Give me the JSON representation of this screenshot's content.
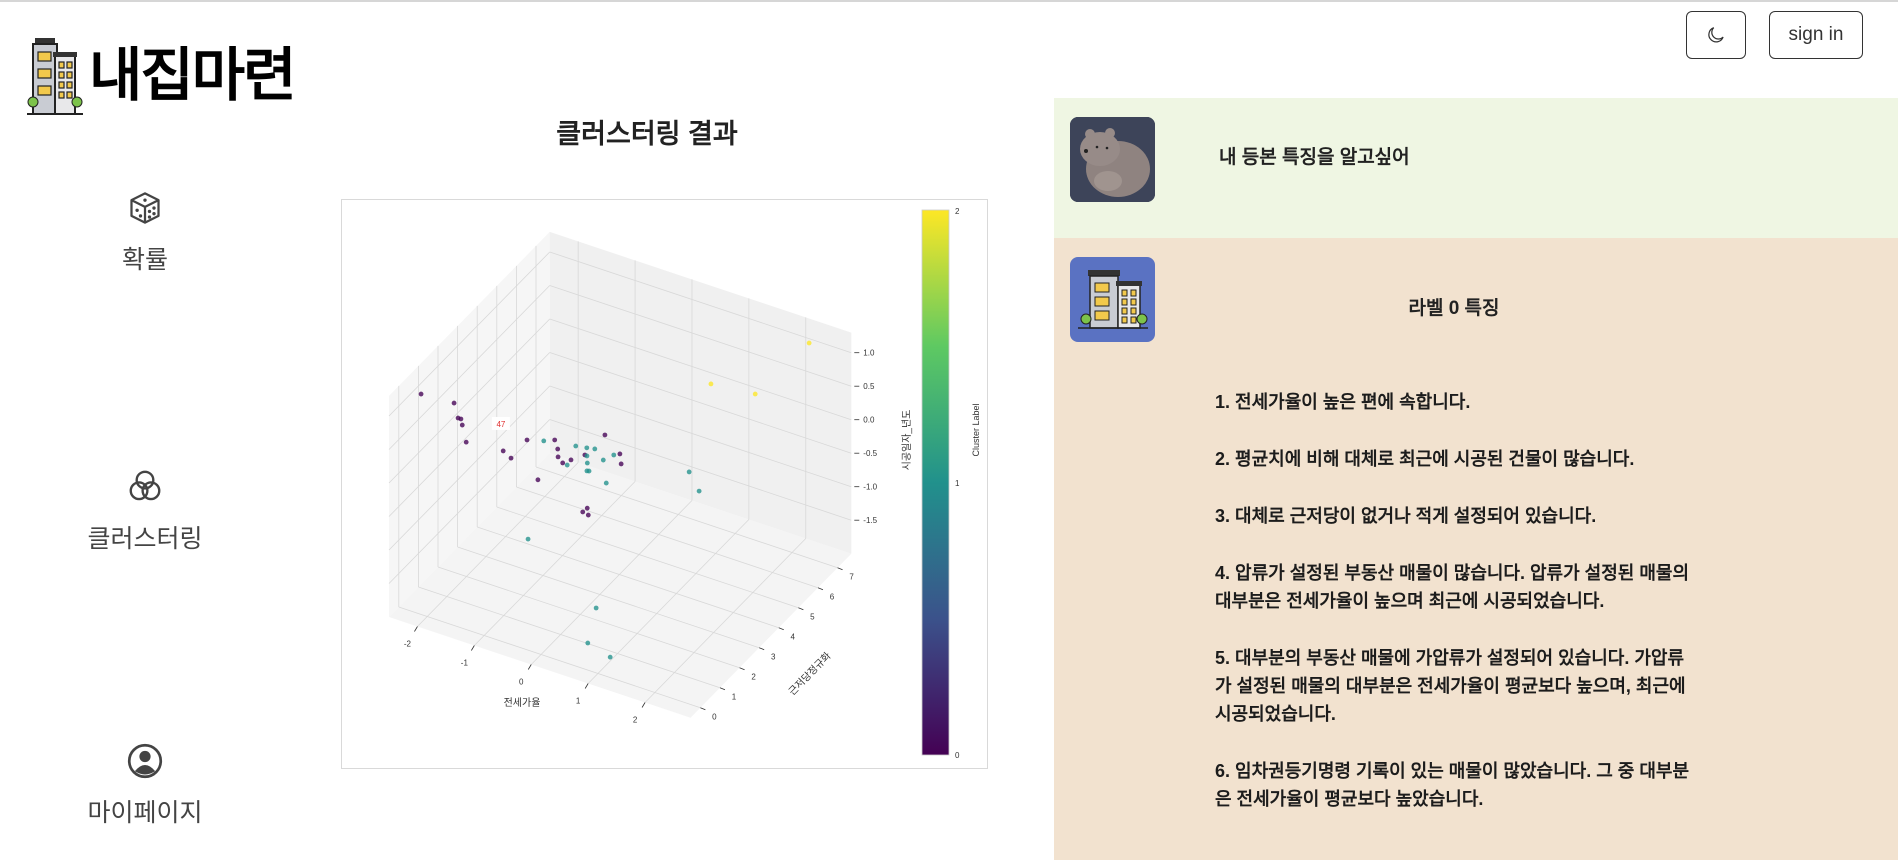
{
  "app": {
    "logo_text": "내집마련"
  },
  "header": {
    "theme_icon": "moon-icon",
    "sign_in_label": "sign in"
  },
  "sidebar": {
    "items": [
      {
        "label": "확률",
        "icon": "dice-icon"
      },
      {
        "label": "클러스터링",
        "icon": "venn-circles-icon"
      },
      {
        "label": "마이페이지",
        "icon": "user-circle-icon"
      }
    ]
  },
  "main": {
    "title": "클러스터링 결과"
  },
  "chart_data": {
    "type": "scatter3d",
    "xlabel": "전세가율",
    "ylabel": "근저당정규화",
    "zlabel": "시공일자_년도",
    "xticks": [
      "-2",
      "-1",
      "0",
      "1",
      "2"
    ],
    "yticks": [
      "0",
      "1",
      "2",
      "3",
      "4",
      "5",
      "6",
      "7"
    ],
    "zticks": [
      "1.0",
      "0.5",
      "0.0",
      "-0.5",
      "-1.0",
      "-1.5"
    ],
    "xlim": [
      -2.5,
      2.8
    ],
    "ylim": [
      -0.5,
      7.7
    ],
    "zlim": [
      -2.0,
      1.3
    ],
    "colorbar": {
      "label": "Cluster Label",
      "ticks": [
        "0",
        "1",
        "2"
      ],
      "colormap": "viridis",
      "range": [
        0,
        2
      ]
    },
    "cluster_colors": [
      "#440154",
      "#21918c",
      "#fde725"
    ],
    "grid": true,
    "annotation": {
      "text": "47",
      "color": "#e03030",
      "x": -1.25,
      "y": 1.58,
      "z": 0.6
    },
    "points": [
      {
        "x": -2.36,
        "y": 0.73,
        "z": 1.0,
        "label": 0
      },
      {
        "x": -1.98,
        "y": 1.31,
        "z": 0.8,
        "label": 0
      },
      {
        "x": -1.82,
        "y": 1.05,
        "z": 0.7,
        "label": 0
      },
      {
        "x": -1.77,
        "y": 1.05,
        "z": 0.7,
        "label": 0
      },
      {
        "x": -1.76,
        "y": 1.09,
        "z": 0.6,
        "label": 0
      },
      {
        "x": -1.66,
        "y": 1.0,
        "z": 0.4,
        "label": 0
      },
      {
        "x": -1.23,
        "y": 1.64,
        "z": 0.2,
        "label": 0
      },
      {
        "x": -1.12,
        "y": 1.72,
        "z": 0.1,
        "label": 0
      },
      {
        "x": -0.97,
        "y": 2.1,
        "z": 0.3,
        "label": 0
      },
      {
        "x": -0.83,
        "y": 2.25,
        "z": -0.3,
        "label": 0
      },
      {
        "x": -0.69,
        "y": 2.7,
        "z": 0.2,
        "label": 0
      },
      {
        "x": -0.62,
        "y": 2.65,
        "z": 0.1,
        "label": 0
      },
      {
        "x": -0.6,
        "y": 2.61,
        "z": 0.0,
        "label": 0
      },
      {
        "x": -0.46,
        "y": 2.44,
        "z": 0.0,
        "label": 0
      },
      {
        "x": -0.39,
        "y": 2.66,
        "z": 0.0,
        "label": 0
      },
      {
        "x": -0.27,
        "y": 3.02,
        "z": 0.0,
        "label": 0
      },
      {
        "x": -0.09,
        "y": 3.52,
        "z": 0.2,
        "label": 0
      },
      {
        "x": 0.18,
        "y": 3.5,
        "z": 0.0,
        "label": 0
      },
      {
        "x": 0.24,
        "y": 3.39,
        "z": -0.1,
        "label": 0
      },
      {
        "x": -0.07,
        "y": 2.56,
        "z": -0.6,
        "label": 0
      },
      {
        "x": -0.08,
        "y": 2.36,
        "z": -0.6,
        "label": 0
      },
      {
        "x": -0.01,
        "y": 2.44,
        "z": -0.65,
        "label": 0
      },
      {
        "x": -0.91,
        "y": 2.78,
        "z": 0.1,
        "label": 1
      },
      {
        "x": -0.42,
        "y": 2.99,
        "z": 0.1,
        "label": 1
      },
      {
        "x": -0.25,
        "y": 3.06,
        "z": 0.1,
        "label": 1
      },
      {
        "x": -0.23,
        "y": 3.01,
        "z": 0.0,
        "label": 1
      },
      {
        "x": -0.13,
        "y": 3.12,
        "z": 0.1,
        "label": 1
      },
      {
        "x": 0.04,
        "y": 3.06,
        "z": 0.0,
        "label": 1
      },
      {
        "x": 0.2,
        "y": 3.13,
        "z": 0.1,
        "label": 1
      },
      {
        "x": -0.46,
        "y": 2.67,
        "z": -0.1,
        "label": 1
      },
      {
        "x": -0.22,
        "y": 3.0,
        "z": -0.1,
        "label": 1
      },
      {
        "x": -0.21,
        "y": 2.95,
        "z": -0.2,
        "label": 1
      },
      {
        "x": -0.18,
        "y": 2.97,
        "z": -0.2,
        "label": 1
      },
      {
        "x": 0.03,
        "y": 3.24,
        "z": -0.4,
        "label": 1
      },
      {
        "x": 1.07,
        "y": 4.45,
        "z": -0.3,
        "label": 1
      },
      {
        "x": 1.19,
        "y": 4.61,
        "z": -0.6,
        "label": 1
      },
      {
        "x": -0.8,
        "y": 1.66,
        "z": -1.0,
        "label": 1
      },
      {
        "x": 0.3,
        "y": 1.94,
        "z": -1.8,
        "label": 1
      },
      {
        "x": 0.47,
        "y": 1.02,
        "z": -2.0,
        "label": 1
      },
      {
        "x": 0.95,
        "y": 0.77,
        "z": -2.0,
        "label": 1
      },
      {
        "x": 1.26,
        "y": 5.01,
        "z": 0.9,
        "label": 2
      },
      {
        "x": 1.89,
        "y": 5.44,
        "z": 0.8,
        "label": 2
      },
      {
        "x": 2.29,
        "y": 7.03,
        "z": 1.2,
        "label": 2
      }
    ]
  },
  "question": {
    "avatar": "bear-avatar",
    "text": "내 등본 특징을 알고싶어"
  },
  "answer": {
    "icon": "building-icon",
    "title": "라벨 0 특징",
    "items": [
      {
        "num": "1.",
        "text": "전세가율이 높은 편에 속합니다."
      },
      {
        "num": "2.",
        "text": "평균치에 비해 대체로 최근에 시공된 건물이 많습니다."
      },
      {
        "num": "3.",
        "text": "대체로 근저당이 없거나 적게 설정되어 있습니다."
      },
      {
        "num": "4.",
        "text": "압류가 설정된 부동산 매물이 많습니다. 압류가 설정된 매물의 대부분은 전세가율이 높으며 최근에 시공되었습니다."
      },
      {
        "num": "5.",
        "text": "대부분의 부동산 매물에 가압류가 설정되어 있습니다. 가압류가 설정된 매물의 대부분은 전세가율이 평균보다 높으며, 최근에 시공되었습니다."
      },
      {
        "num": "6.",
        "text": "임차권등기명령 기록이 있는 매물이 많았습니다. 그 중 대부분은 전세가율이 평균보다 높았습니다."
      }
    ]
  }
}
